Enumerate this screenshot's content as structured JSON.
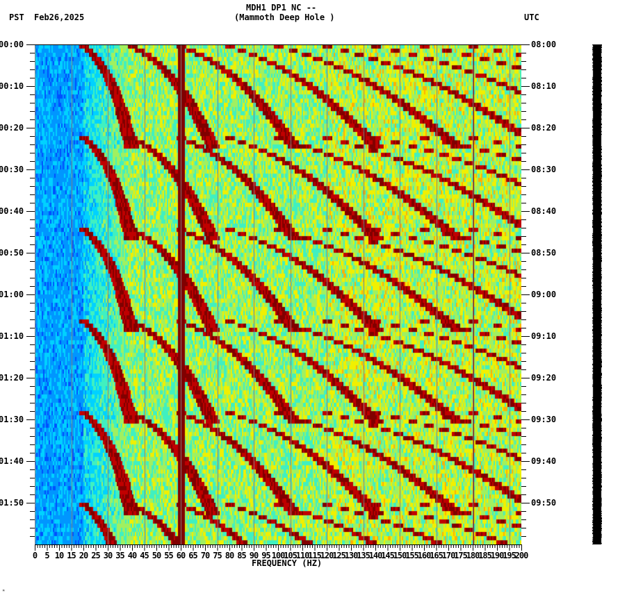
{
  "header": {
    "station_line": "MDH1 DP1 NC --",
    "station_name": "(Mammoth Deep Hole )",
    "left_timezone": "PST",
    "date": "Feb26,2025",
    "right_timezone": "UTC"
  },
  "footer": {
    "corner_mark": "ᴹ"
  },
  "chart_data": {
    "type": "heatmap",
    "title": "MDH1 DP1 NC -- (Mammoth Deep Hole )",
    "subtitle": "Feb26,2025",
    "xlabel": "FREQUENCY (HZ)",
    "ylabel_left": "PST",
    "ylabel_right": "UTC",
    "xlim": [
      0,
      200
    ],
    "x_ticks": [
      0,
      5,
      10,
      15,
      20,
      25,
      30,
      35,
      40,
      45,
      50,
      55,
      60,
      65,
      70,
      75,
      80,
      85,
      90,
      95,
      100,
      105,
      110,
      115,
      120,
      125,
      130,
      135,
      140,
      145,
      150,
      155,
      160,
      165,
      170,
      175,
      180,
      185,
      190,
      195,
      200
    ],
    "y_ticks_left": [
      "00:00",
      "00:10",
      "00:20",
      "00:30",
      "00:40",
      "00:50",
      "01:00",
      "01:10",
      "01:20",
      "01:30",
      "01:40",
      "01:50"
    ],
    "y_ticks_right": [
      "08:00",
      "08:10",
      "08:20",
      "08:30",
      "08:40",
      "08:50",
      "09:00",
      "09:10",
      "09:20",
      "09:30",
      "09:40",
      "09:50"
    ],
    "time_span_minutes": 120,
    "minor_tick_minutes": 1,
    "grid": {
      "vertical_lines_every_hz": 15,
      "color": "#808080"
    },
    "colormap": [
      "#0050ff",
      "#0096ff",
      "#00d2ff",
      "#40f0c0",
      "#a0f060",
      "#f0f000",
      "#ffb000",
      "#ff4000",
      "#c00000",
      "#800000"
    ],
    "persistent_lines_hz": [
      60,
      180
    ],
    "notes": "Low power (blue) below ~20 Hz; strong 60 Hz line; repeating curved gliding harmonic bands approx every 10-11 min; moderate power (green/yellow) 30-200 Hz",
    "glide_events_start_minutes": [
      0,
      22,
      44,
      66,
      88,
      110
    ],
    "trace_bar": {
      "color": "#000000",
      "present": true
    }
  }
}
